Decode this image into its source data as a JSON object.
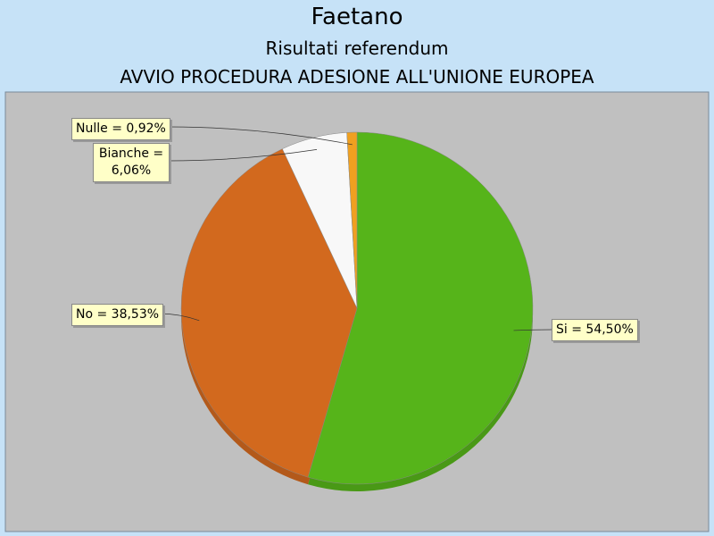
{
  "chart_data": {
    "type": "pie",
    "title": "Faetano",
    "subtitle": "Risultati referendum",
    "subtitle2": "AVVIO PROCEDURA ADESIONE ALL'UNIONE EUROPEA",
    "values": [
      54.5,
      38.53,
      6.06,
      0.92
    ],
    "value_labels": [
      "Si = 54,50%",
      "No = 38,53%",
      "Bianche = 6,06%",
      "Nulle = 0,92%"
    ],
    "colors": [
      "#56b41a",
      "#d2691e",
      "#f8f8f8",
      "#f0a020"
    ]
  }
}
